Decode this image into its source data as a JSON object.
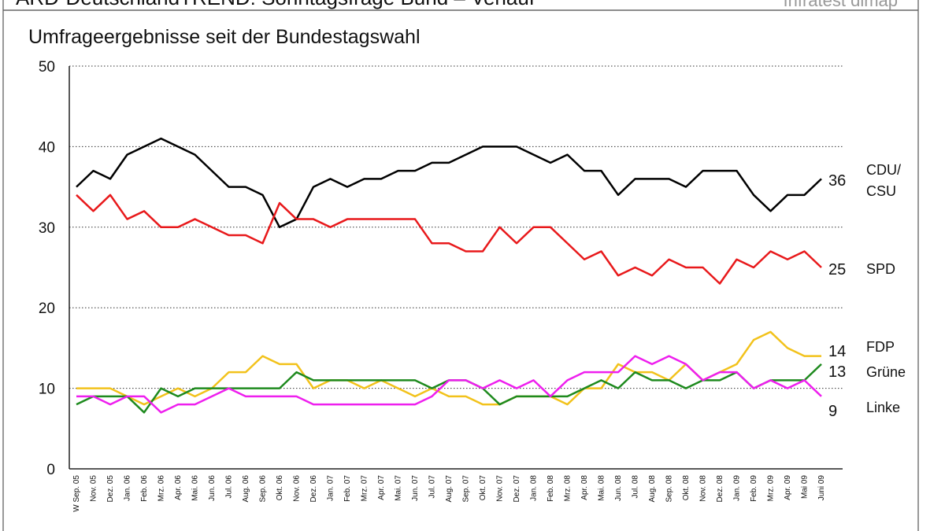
{
  "chart_data": {
    "type": "line",
    "title": "ARD-DeutschlandTREND: Sonntagsfrage Bund – Verlauf",
    "source": "Infratest dimap",
    "subtitle": "Umfrageergebnisse seit der Bundestagswahl",
    "categories": [
      "W Sep. 05",
      "Nov. 05",
      "Dez. 05",
      "Jan. 06",
      "Feb. 06",
      "Mrz. 06",
      "Apr. 06",
      "Mai. 06",
      "Jun. 06",
      "Jul. 06",
      "Aug. 06",
      "Sep. 06",
      "Okt. 06",
      "Nov. 06",
      "Dez. 06",
      "Jan. 07",
      "Feb. 07",
      "Mrz. 07",
      "Apr. 07",
      "Mai. 07",
      "Jun. 07",
      "Jul. 07",
      "Aug. 07",
      "Sep. 07",
      "Okt. 07",
      "Nov. 07",
      "Dez. 07",
      "Jan. 08",
      "Feb. 08",
      "Mrz. 08",
      "Apr. 08",
      "Mai. 08",
      "Jun. 08",
      "Jul. 08",
      "Aug. 08",
      "Sep. 08",
      "Okt. 08",
      "Nov. 08",
      "Dez. 08",
      "Jan. 09",
      "Feb. 09",
      "Mrz. 09",
      "Apr. 09",
      "Mai 09",
      "Juni 09"
    ],
    "series": [
      {
        "name": "CDU/CSU",
        "color": "#000000",
        "values": [
          35,
          37,
          36,
          39,
          40,
          41,
          40,
          39,
          37,
          35,
          35,
          34,
          30,
          31,
          35,
          36,
          35,
          36,
          36,
          37,
          37,
          38,
          38,
          39,
          40,
          40,
          40,
          39,
          38,
          39,
          37,
          37,
          34,
          36,
          36,
          36,
          35,
          37,
          37,
          37,
          34,
          32,
          34,
          34,
          36
        ]
      },
      {
        "name": "SPD",
        "color": "#e8191b",
        "values": [
          34,
          32,
          34,
          31,
          32,
          30,
          30,
          31,
          30,
          29,
          29,
          28,
          33,
          31,
          31,
          30,
          31,
          31,
          31,
          31,
          31,
          28,
          28,
          27,
          27,
          30,
          28,
          30,
          30,
          28,
          26,
          27,
          24,
          25,
          24,
          26,
          25,
          25,
          23,
          26,
          25,
          27,
          26,
          27,
          25
        ]
      },
      {
        "name": "FDP",
        "color": "#f2c21b",
        "values": [
          10,
          10,
          10,
          9,
          8,
          9,
          10,
          9,
          10,
          12,
          12,
          14,
          13,
          13,
          10,
          11,
          11,
          10,
          11,
          10,
          9,
          10,
          9,
          9,
          8,
          8,
          9,
          9,
          9,
          8,
          10,
          10,
          13,
          12,
          12,
          11,
          13,
          11,
          12,
          13,
          16,
          17,
          15,
          14,
          14
        ]
      },
      {
        "name": "Grüne",
        "color": "#1e8a1e",
        "values": [
          8,
          9,
          9,
          9,
          7,
          10,
          9,
          10,
          10,
          10,
          10,
          10,
          10,
          12,
          11,
          11,
          11,
          11,
          11,
          11,
          11,
          10,
          11,
          11,
          10,
          8,
          9,
          9,
          9,
          9,
          10,
          11,
          10,
          12,
          11,
          11,
          10,
          11,
          11,
          12,
          10,
          11,
          11,
          11,
          13
        ]
      },
      {
        "name": "Linke",
        "color": "#ee1fee",
        "values": [
          9,
          9,
          8,
          9,
          9,
          7,
          8,
          8,
          9,
          10,
          9,
          9,
          9,
          9,
          8,
          8,
          8,
          8,
          8,
          8,
          8,
          9,
          11,
          11,
          10,
          11,
          10,
          11,
          9,
          11,
          12,
          12,
          12,
          14,
          13,
          14,
          13,
          11,
          12,
          12,
          10,
          11,
          10,
          11,
          9
        ]
      }
    ],
    "ylim": [
      0,
      50
    ],
    "yticks": [
      0,
      10,
      20,
      30,
      40,
      50
    ],
    "grid": true
  }
}
